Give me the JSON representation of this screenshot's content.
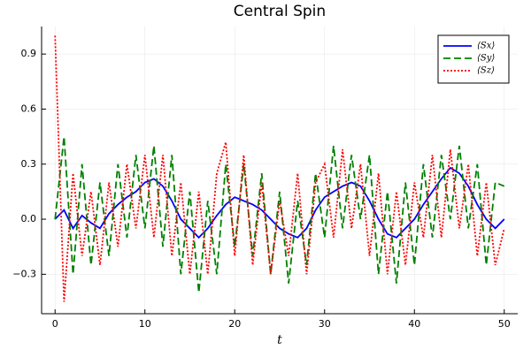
{
  "chart_data": {
    "type": "line",
    "title": "Central Spin",
    "x_label": "t",
    "x": [
      0,
      1,
      2,
      3,
      4,
      5,
      6,
      7,
      8,
      9,
      10,
      11,
      12,
      13,
      14,
      15,
      16,
      17,
      18,
      19,
      20,
      21,
      22,
      23,
      24,
      25,
      26,
      27,
      28,
      29,
      30,
      31,
      32,
      33,
      34,
      35,
      36,
      37,
      38,
      39,
      40,
      41,
      42,
      43,
      44,
      45,
      46,
      47,
      48,
      49,
      50
    ],
    "series": [
      {
        "name": "⟨Sx⟩",
        "color": "#0000ff",
        "style": "solid",
        "values": [
          0.0,
          0.05,
          -0.05,
          0.02,
          -0.02,
          -0.05,
          0.03,
          0.08,
          0.12,
          0.15,
          0.2,
          0.22,
          0.18,
          0.1,
          0.0,
          -0.05,
          -0.1,
          -0.05,
          0.02,
          0.08,
          0.12,
          0.1,
          0.08,
          0.05,
          0.0,
          -0.05,
          -0.08,
          -0.1,
          -0.05,
          0.05,
          0.12,
          0.15,
          0.18,
          0.2,
          0.18,
          0.1,
          0.0,
          -0.08,
          -0.1,
          -0.05,
          0.0,
          0.08,
          0.15,
          0.22,
          0.28,
          0.25,
          0.18,
          0.08,
          0.0,
          -0.05,
          0.0
        ]
      },
      {
        "name": "⟨Sy⟩",
        "color": "#008000",
        "style": "dash",
        "values": [
          0.0,
          0.45,
          -0.3,
          0.3,
          -0.25,
          0.2,
          -0.2,
          0.3,
          -0.1,
          0.35,
          -0.05,
          0.4,
          -0.15,
          0.35,
          -0.3,
          0.15,
          -0.4,
          0.1,
          -0.3,
          0.3,
          -0.15,
          0.3,
          -0.2,
          0.25,
          -0.3,
          0.15,
          -0.35,
          0.1,
          -0.25,
          0.25,
          -0.1,
          0.4,
          -0.05,
          0.35,
          0.0,
          0.35,
          -0.3,
          0.15,
          -0.35,
          0.2,
          -0.25,
          0.3,
          -0.1,
          0.35,
          0.0,
          0.4,
          -0.05,
          0.3,
          -0.25,
          0.2,
          0.18
        ]
      },
      {
        "name": "⟨Sz⟩",
        "color": "#ff0000",
        "style": "dot",
        "values": [
          1.0,
          -0.45,
          0.25,
          -0.2,
          0.15,
          -0.25,
          0.2,
          -0.15,
          0.3,
          -0.05,
          0.35,
          -0.1,
          0.35,
          -0.2,
          0.2,
          -0.3,
          0.15,
          -0.3,
          0.25,
          0.42,
          -0.2,
          0.35,
          -0.25,
          0.2,
          -0.3,
          0.1,
          -0.2,
          0.25,
          -0.3,
          0.2,
          0.3,
          -0.1,
          0.38,
          -0.05,
          0.3,
          -0.2,
          0.25,
          -0.3,
          0.15,
          -0.25,
          0.2,
          -0.1,
          0.35,
          -0.1,
          0.38,
          -0.05,
          0.3,
          -0.2,
          0.2,
          -0.25,
          -0.05
        ]
      }
    ],
    "xlim": [
      -1.5,
      51.5
    ],
    "xticks": [
      0,
      10,
      20,
      30,
      40,
      50
    ],
    "ylim": [
      -0.515,
      1.05
    ],
    "yticks": [
      {
        "value": -0.3,
        "label": "−0.3"
      },
      {
        "value": 0,
        "label": "0.0"
      },
      0.3,
      0.6,
      0.9
    ],
    "grid": true,
    "legend": "top-right"
  }
}
